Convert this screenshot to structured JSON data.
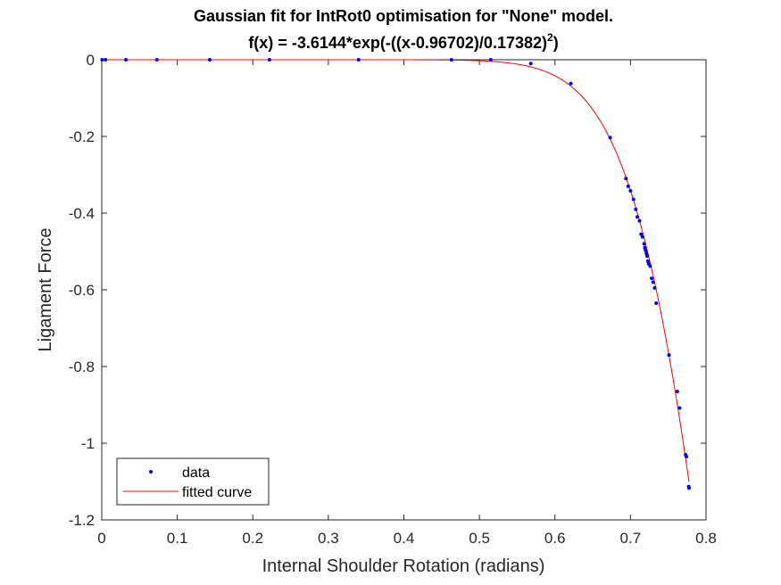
{
  "chart_data": {
    "type": "scatter",
    "title_line1": "Gaussian fit for IntRot0 optimisation for \"None\" model.",
    "title_line2_main": "f(x) = -3.6144*exp(-((x-0.96702)/0.17382)",
    "title_line2_sup": "2",
    "title_line2_tail": ")",
    "xlabel": "Internal Shoulder Rotation (radians)",
    "ylabel": "Ligament Force",
    "xlim": [
      0,
      0.8
    ],
    "ylim": [
      -1.2,
      0
    ],
    "xticks": [
      0,
      0.1,
      0.2,
      0.3,
      0.4,
      0.5,
      0.6,
      0.7,
      0.8
    ],
    "xtick_labels": [
      "0",
      "0.1",
      "0.2",
      "0.3",
      "0.4",
      "0.5",
      "0.6",
      "0.7",
      "0.8"
    ],
    "yticks": [
      0,
      -0.2,
      -0.4,
      -0.6,
      -0.8,
      -1,
      -1.2
    ],
    "ytick_labels": [
      "0",
      "-0.2",
      "-0.4",
      "-0.6",
      "-0.8",
      "-1",
      "-1.2"
    ],
    "grid": false,
    "legend_position": "bottom-left",
    "fit": {
      "a": -3.6144,
      "b": 0.96702,
      "c": 0.17382
    },
    "series": [
      {
        "name": "data",
        "style": "points",
        "color": "#0000ff",
        "x": [
          0.0005,
          0.005,
          0.032,
          0.073,
          0.143,
          0.222,
          0.34,
          0.463,
          0.515,
          0.568,
          0.621,
          0.673,
          0.694,
          0.697,
          0.7,
          0.704,
          0.707,
          0.709,
          0.712,
          0.714,
          0.716,
          0.718,
          0.719,
          0.72,
          0.721,
          0.722,
          0.723,
          0.724,
          0.726,
          0.728,
          0.73,
          0.732,
          0.734,
          0.751,
          0.762,
          0.765,
          0.773,
          0.774,
          0.777,
          0.7775
        ],
        "y": [
          0,
          0,
          0,
          0,
          0,
          0,
          0,
          0,
          0,
          -0.01,
          -0.062,
          -0.203,
          -0.31,
          -0.33,
          -0.342,
          -0.364,
          -0.39,
          -0.41,
          -0.42,
          -0.455,
          -0.462,
          -0.48,
          -0.49,
          -0.497,
          -0.505,
          -0.512,
          -0.525,
          -0.532,
          -0.538,
          -0.57,
          -0.58,
          -0.595,
          -0.635,
          -0.77,
          -0.865,
          -0.908,
          -1.03,
          -1.035,
          -1.113,
          -1.117
        ]
      },
      {
        "name": "fitted curve",
        "style": "line",
        "color": "#ff0000",
        "x_range": [
          0,
          0.7775
        ]
      }
    ]
  }
}
